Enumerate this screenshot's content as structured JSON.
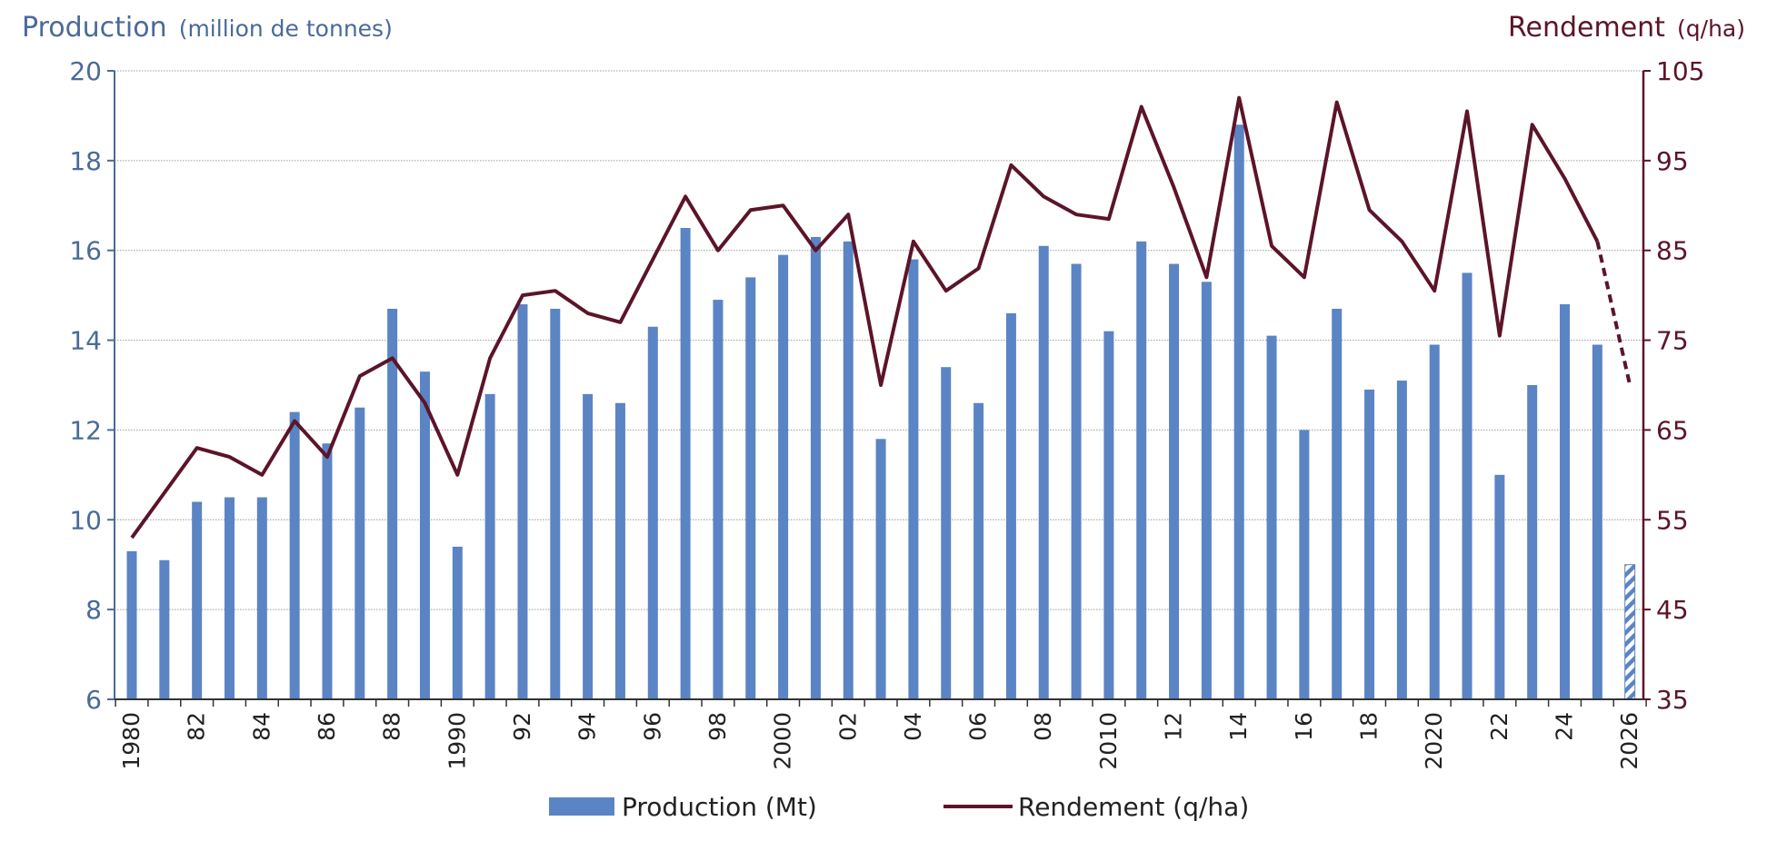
{
  "colors": {
    "production": "#5b84c4",
    "rendement": "#5c1428",
    "left_axis_text": "#4a6a9a",
    "grid": "#9a9a9a"
  },
  "chart_data": {
    "type": "bar",
    "title_left": "Production",
    "title_left_unit": "(million de tonnes)",
    "title_right": "Rendement",
    "title_right_unit": "(q/ha)",
    "x": [
      1980,
      1981,
      1982,
      1983,
      1984,
      1985,
      1986,
      1987,
      1988,
      1989,
      1990,
      1991,
      1992,
      1993,
      1994,
      1995,
      1996,
      1997,
      1998,
      1999,
      2000,
      2001,
      2002,
      2003,
      2004,
      2005,
      2006,
      2007,
      2008,
      2009,
      2010,
      2011,
      2012,
      2013,
      2014,
      2015,
      2016,
      2017,
      2018,
      2019,
      2020,
      2021,
      2022,
      2023,
      2024,
      2025,
      2026
    ],
    "x_tick_labels": [
      {
        "year": 1980,
        "label": "1980"
      },
      {
        "year": 1982,
        "label": "82"
      },
      {
        "year": 1984,
        "label": "84"
      },
      {
        "year": 1986,
        "label": "86"
      },
      {
        "year": 1988,
        "label": "88"
      },
      {
        "year": 1990,
        "label": "1990"
      },
      {
        "year": 1992,
        "label": "92"
      },
      {
        "year": 1994,
        "label": "94"
      },
      {
        "year": 1996,
        "label": "96"
      },
      {
        "year": 1998,
        "label": "98"
      },
      {
        "year": 2000,
        "label": "2000"
      },
      {
        "year": 2002,
        "label": "02"
      },
      {
        "year": 2004,
        "label": "04"
      },
      {
        "year": 2006,
        "label": "06"
      },
      {
        "year": 2008,
        "label": "08"
      },
      {
        "year": 2010,
        "label": "2010"
      },
      {
        "year": 2012,
        "label": "12"
      },
      {
        "year": 2014,
        "label": "14"
      },
      {
        "year": 2016,
        "label": "16"
      },
      {
        "year": 2018,
        "label": "18"
      },
      {
        "year": 2020,
        "label": "2020"
      },
      {
        "year": 2022,
        "label": "22"
      },
      {
        "year": 2024,
        "label": "24"
      },
      {
        "year": 2026,
        "label": "2026"
      }
    ],
    "y_left_lim": [
      6,
      20
    ],
    "y_left_ticks": [
      6,
      8,
      10,
      12,
      14,
      16,
      18,
      20
    ],
    "y_right_lim": [
      35,
      105
    ],
    "y_right_ticks": [
      35,
      45,
      55,
      65,
      75,
      85,
      95,
      105
    ],
    "grid": true,
    "legend_position": "bottom",
    "series": [
      {
        "name": "Production (Mt)",
        "type": "bar",
        "axis": "left",
        "values": [
          9.3,
          9.1,
          10.4,
          10.5,
          10.5,
          12.4,
          11.7,
          12.5,
          14.7,
          13.3,
          9.4,
          12.8,
          14.8,
          14.7,
          12.8,
          12.6,
          14.3,
          16.5,
          14.9,
          15.4,
          15.9,
          16.3,
          16.2,
          11.8,
          15.8,
          13.4,
          12.6,
          14.6,
          16.1,
          15.7,
          14.2,
          16.2,
          15.7,
          15.3,
          18.8,
          14.1,
          12.0,
          14.7,
          12.9,
          13.1,
          13.9,
          15.5,
          11.0,
          13.0,
          14.8,
          13.9,
          9.0
        ],
        "forecast_years": [
          2026
        ]
      },
      {
        "name": "Rendement (q/ha)",
        "type": "line",
        "axis": "right",
        "values": [
          53,
          58,
          63,
          62,
          60,
          66,
          62,
          71,
          73,
          68,
          60,
          73,
          80,
          80.5,
          78,
          77,
          84,
          91,
          85,
          89.5,
          90,
          85,
          89,
          70,
          86,
          80.5,
          83,
          94.5,
          91,
          89,
          88.5,
          101,
          92,
          82,
          102,
          85.5,
          82,
          101.5,
          89.5,
          86,
          80.5,
          100.5,
          75.5,
          99,
          93,
          86,
          70
        ],
        "forecast_years": [
          2026
        ]
      }
    ]
  }
}
